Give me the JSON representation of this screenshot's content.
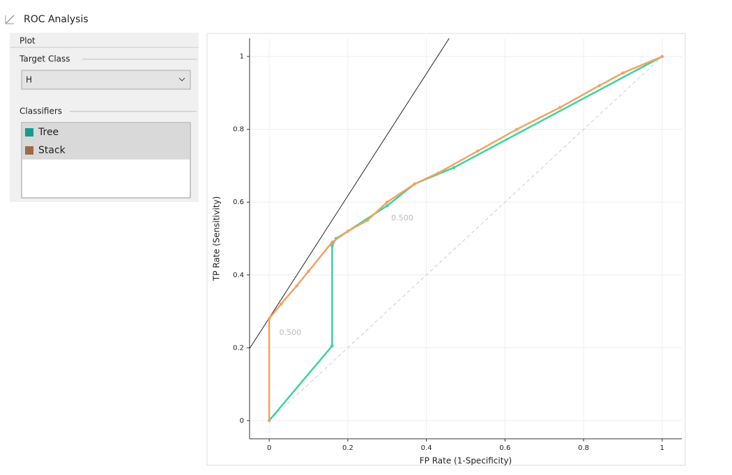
{
  "window": {
    "title": "ROC Analysis"
  },
  "panel": {
    "section": "Plot",
    "target_class_label": "Target Class",
    "target_class": "H",
    "classifiers_label": "Classifiers"
  },
  "chart_data": {
    "type": "line",
    "xlabel": "FP Rate (1-Specificity)",
    "ylabel": "TP Rate (Sensitivity)",
    "xlim": [
      -0.05,
      1.05
    ],
    "ylim": [
      -0.05,
      1.05
    ],
    "xticks": [
      0,
      0.2,
      0.4,
      0.6,
      0.8,
      1
    ],
    "yticks": [
      0,
      0.2,
      0.4,
      0.6,
      0.8,
      1
    ],
    "grid": true,
    "series": [
      {
        "name": "Tree",
        "color": "#3ad49e",
        "legend_color": "#1a9a8c",
        "x": [
          0,
          0.16,
          0.16,
          0.17,
          0.2,
          0.3,
          0.37,
          0.47,
          1
        ],
        "values": [
          0,
          0.205,
          0.48,
          0.5,
          0.52,
          0.59,
          0.65,
          0.695,
          1
        ]
      },
      {
        "name": "Stack",
        "color": "#f2a262",
        "legend_color": "#9c6a46",
        "x": [
          0,
          0,
          0.03,
          0.07,
          0.1,
          0.16,
          0.2,
          0.25,
          0.3,
          0.37,
          0.43,
          0.53,
          0.63,
          0.74,
          0.84,
          0.9,
          1
        ],
        "values": [
          0,
          0.28,
          0.32,
          0.37,
          0.41,
          0.49,
          0.52,
          0.55,
          0.6,
          0.65,
          0.68,
          0.74,
          0.8,
          0.86,
          0.92,
          0.955,
          1
        ]
      }
    ],
    "diagonal": {
      "x": [
        0,
        1
      ],
      "values": [
        0,
        1
      ]
    },
    "iso_performance_line": {
      "x": [
        -0.05,
        0.458
      ],
      "values": [
        0.198,
        1.05
      ]
    },
    "annotations": [
      {
        "text": "0.500",
        "x": 0.015,
        "y": 0.26
      },
      {
        "text": "0.500",
        "x": 0.3,
        "y": 0.575
      }
    ]
  }
}
